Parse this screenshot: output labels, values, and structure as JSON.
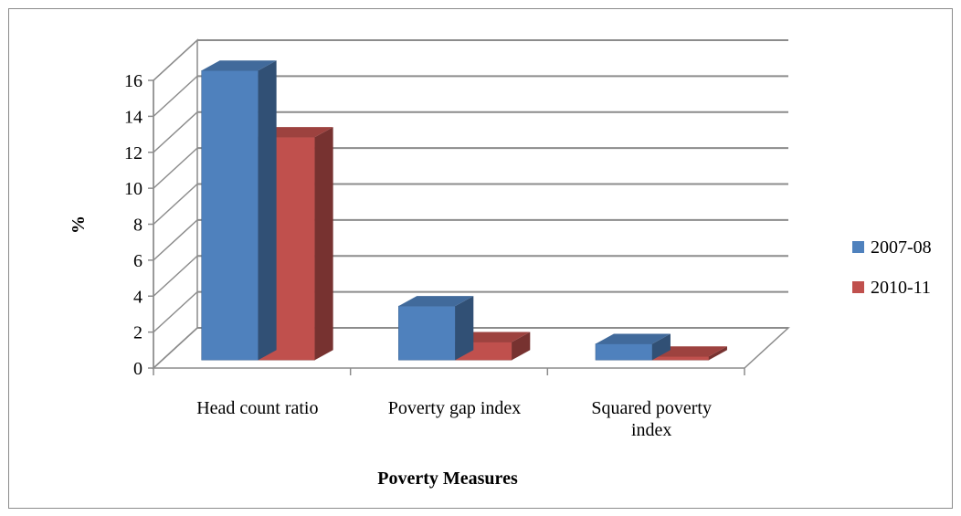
{
  "chart_data": {
    "type": "bar",
    "style": "3d-clustered-column",
    "categories": [
      "Head count ratio",
      "Poverty gap index",
      "Squared poverty index"
    ],
    "series": [
      {
        "name": "2007-08",
        "color": "#4f81bd",
        "values": [
          16.1,
          3.0,
          0.9
        ]
      },
      {
        "name": "2010-11",
        "color": "#c0504d",
        "values": [
          12.4,
          1.0,
          0.2
        ]
      }
    ],
    "xlabel": "Poverty Measures",
    "ylabel": "%",
    "ylim": [
      0,
      16
    ],
    "yticks": [
      0,
      2,
      4,
      6,
      8,
      10,
      12,
      14,
      16
    ],
    "grid": true,
    "legend": "right"
  }
}
